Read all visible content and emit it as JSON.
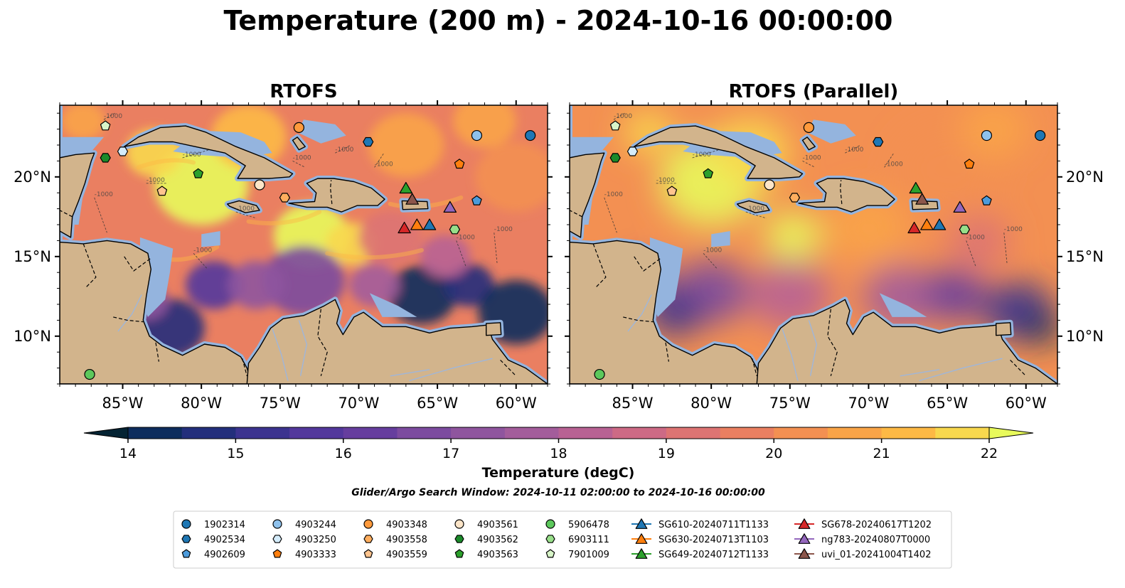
{
  "figure": {
    "title": "Temperature (200 m) - 2024-10-16 00:00:00",
    "search_window": "Glider/Argo Search Window: 2024-10-11 02:00:00 to 2024-10-16 00:00:00"
  },
  "panels": [
    {
      "title": "RTOFS",
      "variant": "mixed"
    },
    {
      "title": "RTOFS (Parallel)",
      "variant": "smooth"
    }
  ],
  "map": {
    "lon_range": [
      -89,
      -58
    ],
    "lat_range": [
      7,
      24.5
    ],
    "x_ticks": [
      "85°W",
      "80°W",
      "75°W",
      "70°W",
      "65°W",
      "60°W"
    ],
    "x_tick_values": [
      -85,
      -80,
      -75,
      -70,
      -65,
      -60
    ],
    "y_ticks": [
      "10°N",
      "15°N",
      "20°N"
    ],
    "y_tick_values": [
      10,
      15,
      20
    ],
    "contour_label": "-1000",
    "colors": {
      "land": "#d2b48c",
      "shelf": "#94b4de",
      "deep_outside": "#032230"
    }
  },
  "colorbar": {
    "label": "Temperature (degC)",
    "ticks": [
      "14",
      "15",
      "16",
      "17",
      "18",
      "19",
      "20",
      "21",
      "22"
    ],
    "min": 14,
    "max": 22,
    "step": 0.5,
    "palette": [
      "#042333",
      "#0d2d5d",
      "#232f7c",
      "#3c338f",
      "#53389c",
      "#663e9e",
      "#7c4b9f",
      "#8f559e",
      "#a35d9b",
      "#b86293",
      "#cd6a85",
      "#dd7473",
      "#ea7f61",
      "#f39052",
      "#f9a448",
      "#fdb945",
      "#f8d84e",
      "#e8fa5b"
    ]
  },
  "legend": {
    "items": [
      {
        "label": "1902314",
        "marker": "circle",
        "color": "#1f77b4"
      },
      {
        "label": "4902534",
        "marker": "hexagon",
        "color": "#1f77b4"
      },
      {
        "label": "4902609",
        "marker": "pentagon",
        "color": "#4c9bdb"
      },
      {
        "label": "4903244",
        "marker": "circle",
        "color": "#8ec1ec"
      },
      {
        "label": "4903250",
        "marker": "hexagon",
        "color": "#d4ecfb"
      },
      {
        "label": "4903333",
        "marker": "pentagon",
        "color": "#ff7f0e"
      },
      {
        "label": "4903348",
        "marker": "circle",
        "color": "#ff9a3c"
      },
      {
        "label": "4903558",
        "marker": "hexagon",
        "color": "#ffae5e"
      },
      {
        "label": "4903559",
        "marker": "pentagon",
        "color": "#ffc48e"
      },
      {
        "label": "4903561",
        "marker": "circle",
        "color": "#fde5c8"
      },
      {
        "label": "4903562",
        "marker": "hexagon",
        "color": "#1b8a2a"
      },
      {
        "label": "4903563",
        "marker": "pentagon",
        "color": "#2ca02c"
      },
      {
        "label": "5906478",
        "marker": "circle",
        "color": "#5cc85c"
      },
      {
        "label": "6903111",
        "marker": "hexagon",
        "color": "#98df8a"
      },
      {
        "label": "7901009",
        "marker": "pentagon",
        "color": "#d8f5c8"
      },
      {
        "label": "SG610-20240711T1133",
        "marker": "triangle",
        "color": "#1f77b4"
      },
      {
        "label": "SG630-20240713T1103",
        "marker": "triangle",
        "color": "#ff7f0e"
      },
      {
        "label": "SG649-20240712T1133",
        "marker": "triangle",
        "color": "#2ca02c"
      },
      {
        "label": "SG678-20240617T1202",
        "marker": "triangle",
        "color": "#d62728"
      },
      {
        "label": "ng783-20240807T0000",
        "marker": "triangle",
        "color": "#9467bd"
      },
      {
        "label": "uvi_01-20241004T1402",
        "marker": "triangle",
        "color": "#8c564b"
      }
    ]
  },
  "observations": [
    {
      "id": "1902314",
      "lon": -59.1,
      "lat": 22.6
    },
    {
      "id": "4902534",
      "lon": -69.4,
      "lat": 22.2
    },
    {
      "id": "4902609",
      "lon": -62.5,
      "lat": 18.5
    },
    {
      "id": "4903244",
      "lon": -62.5,
      "lat": 22.6
    },
    {
      "id": "4903250",
      "lon": -85.0,
      "lat": 21.6
    },
    {
      "id": "4903333",
      "lon": -63.6,
      "lat": 20.8
    },
    {
      "id": "4903348",
      "lon": -73.8,
      "lat": 23.1
    },
    {
      "id": "4903558",
      "lon": -74.7,
      "lat": 18.7
    },
    {
      "id": "4903559",
      "lon": -82.5,
      "lat": 19.1
    },
    {
      "id": "4903561",
      "lon": -76.3,
      "lat": 19.5
    },
    {
      "id": "4903562",
      "lon": -86.1,
      "lat": 21.2
    },
    {
      "id": "4903563",
      "lon": -80.2,
      "lat": 20.2
    },
    {
      "id": "5906478",
      "lon": -87.1,
      "lat": 7.6
    },
    {
      "id": "6903111",
      "lon": -63.9,
      "lat": 16.7
    },
    {
      "id": "7901009",
      "lon": -86.1,
      "lat": 23.2
    },
    {
      "id": "SG610-20240711T1133",
      "lon": -65.5,
      "lat": 17.0
    },
    {
      "id": "SG630-20240713T1103",
      "lon": -66.3,
      "lat": 17.0
    },
    {
      "id": "SG649-20240712T1133",
      "lon": -67.0,
      "lat": 19.3
    },
    {
      "id": "SG678-20240617T1202",
      "lon": -67.1,
      "lat": 16.8
    },
    {
      "id": "ng783-20240807T0000",
      "lon": -64.2,
      "lat": 18.1
    },
    {
      "id": "uvi_01-20241004T1402",
      "lon": -66.6,
      "lat": 18.6
    }
  ]
}
